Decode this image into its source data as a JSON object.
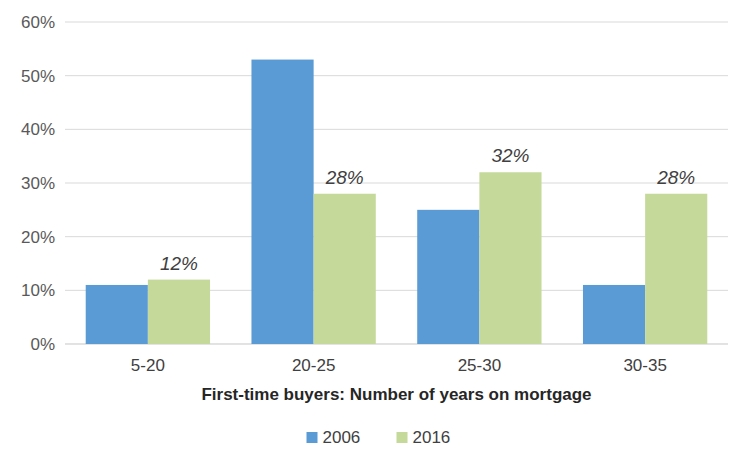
{
  "chart_data": {
    "type": "bar",
    "x_label": "First-time buyers: Number of years on mortgage",
    "categories": [
      "5-20",
      "20-25",
      "25-30",
      "30-35"
    ],
    "series": [
      {
        "name": "2006",
        "color": "#5b9bd5",
        "values": [
          11,
          53,
          25,
          11
        ],
        "data_labels": false
      },
      {
        "name": "2016",
        "color": "#c5d99b",
        "values": [
          12,
          28,
          32,
          28
        ],
        "data_labels": true,
        "value_labels": [
          "12%",
          "28%",
          "32%",
          "28%"
        ]
      }
    ],
    "ylim": [
      0,
      60
    ],
    "yticks": [
      {
        "value": 0,
        "label": "0%"
      },
      {
        "value": 10,
        "label": "10%"
      },
      {
        "value": 20,
        "label": "20%"
      },
      {
        "value": 30,
        "label": "30%"
      },
      {
        "value": 40,
        "label": "40%"
      },
      {
        "value": 50,
        "label": "50%"
      },
      {
        "value": 60,
        "label": "60%"
      }
    ],
    "grid": true,
    "legend": "bottom"
  }
}
